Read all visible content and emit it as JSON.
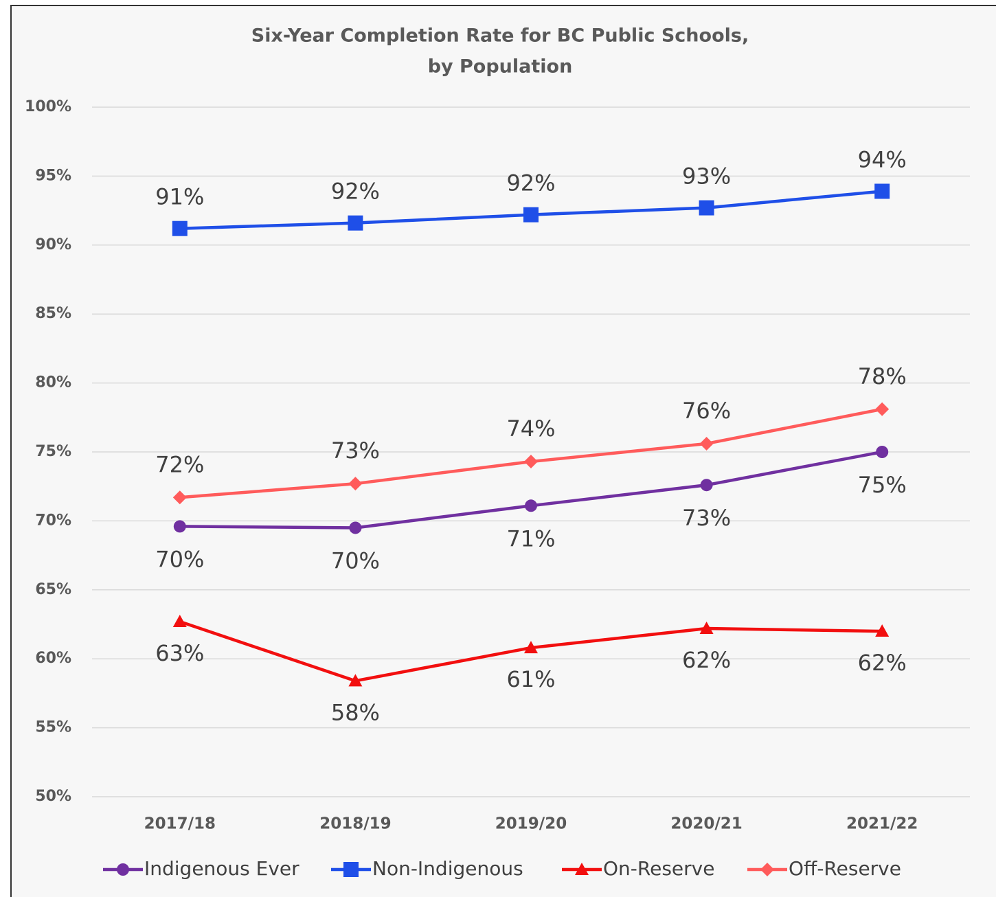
{
  "chart_data": {
    "type": "line",
    "title": [
      "Six-Year Completion Rate for BC Public Schools,",
      "by Population"
    ],
    "categories": [
      "2017/18",
      "2018/19",
      "2019/20",
      "2020/21",
      "2021/22"
    ],
    "ylim": [
      50,
      100
    ],
    "yticks": [
      {
        "value": 50,
        "label": "50%"
      },
      {
        "value": 55,
        "label": "55%"
      },
      {
        "value": 60,
        "label": "60%"
      },
      {
        "value": 65,
        "label": "65%"
      },
      {
        "value": 70,
        "label": "70%"
      },
      {
        "value": 75,
        "label": "75%"
      },
      {
        "value": 80,
        "label": "80%"
      },
      {
        "value": 85,
        "label": "85%"
      },
      {
        "value": 90,
        "label": "90%"
      },
      {
        "value": 95,
        "label": "95%"
      },
      {
        "value": 100,
        "label": "100%"
      }
    ],
    "grid": true,
    "legend": "bottom",
    "series": [
      {
        "name": "Indigenous Ever",
        "color": "#7030a0",
        "marker": "circle",
        "values": [
          69.6,
          69.5,
          71.1,
          72.6,
          75.0
        ],
        "value_labels": [
          "70%",
          "70%",
          "71%",
          "73%",
          "75%"
        ]
      },
      {
        "name": "Non-Indigenous",
        "color": "#1f4fe8",
        "marker": "square",
        "values": [
          91.2,
          91.6,
          92.2,
          92.7,
          93.9
        ],
        "value_labels": [
          "91%",
          "92%",
          "92%",
          "93%",
          "94%"
        ]
      },
      {
        "name": "On-Reserve",
        "color": "#f20f0f",
        "marker": "triangle",
        "values": [
          62.7,
          58.4,
          60.8,
          62.2,
          62.0
        ],
        "value_labels": [
          "63%",
          "58%",
          "61%",
          "62%",
          "62%"
        ]
      },
      {
        "name": "Off-Reserve",
        "color": "#ff5b5b",
        "marker": "diamond",
        "values": [
          71.7,
          72.7,
          74.3,
          75.6,
          78.1
        ],
        "value_labels": [
          "72%",
          "73%",
          "74%",
          "76%",
          "78%"
        ]
      }
    ]
  }
}
